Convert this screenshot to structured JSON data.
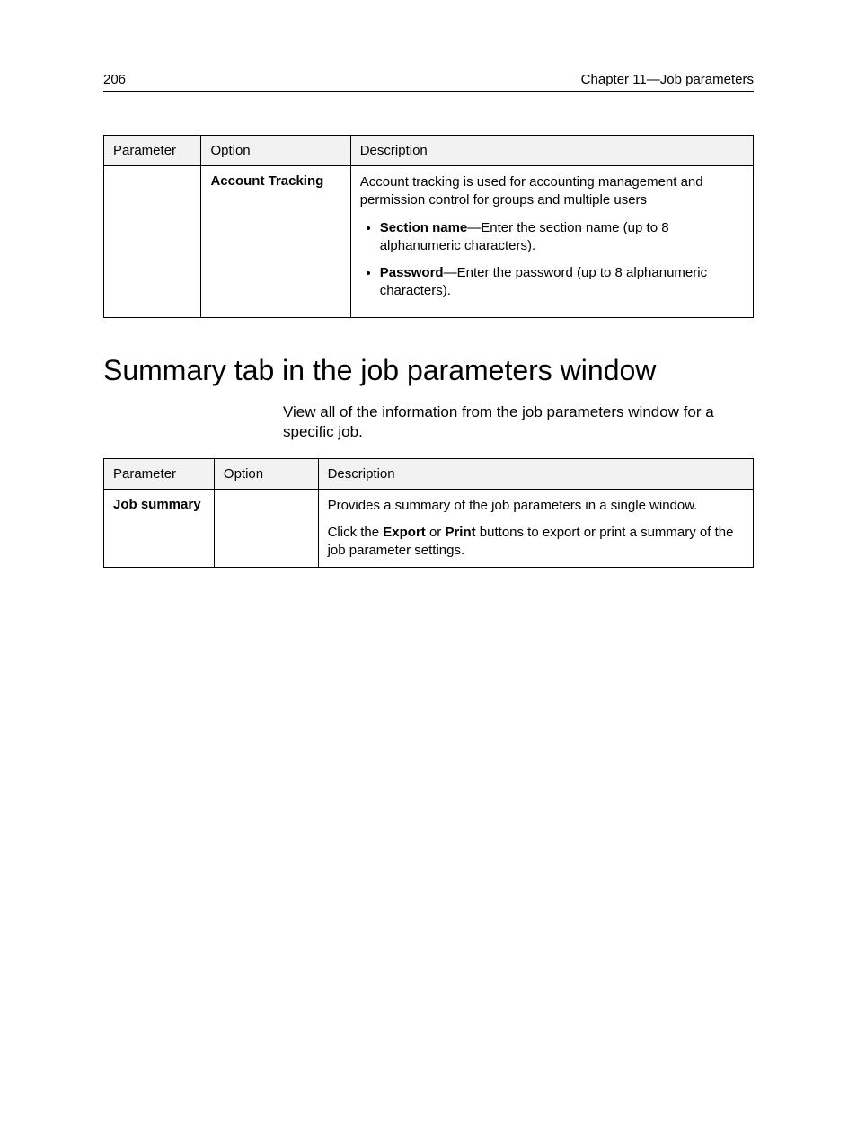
{
  "header": {
    "page_number": "206",
    "chapter_label": "Chapter 11—Job parameters"
  },
  "table1": {
    "columns": [
      "Parameter",
      "Option",
      "Description"
    ],
    "col_widths": [
      "15%",
      "23%",
      "62%"
    ],
    "row": {
      "parameter": "",
      "option": "Account Tracking",
      "desc_intro": "Account tracking is used for accounting management and permission control for groups and multiple users",
      "bullets": [
        {
          "label": "Section name",
          "text": "—Enter the section name (up to 8 alphanumeric characters)."
        },
        {
          "label": "Password",
          "text": "—Enter the password (up to 8 alphanumeric characters)."
        }
      ]
    }
  },
  "section_heading": "Summary tab in the job parameters window",
  "intro_text": "View all of the information from the job parameters window for a specific job.",
  "table2": {
    "columns": [
      "Parameter",
      "Option",
      "Description"
    ],
    "col_widths": [
      "17%",
      "16%",
      "67%"
    ],
    "row": {
      "parameter": "Job summary",
      "option": "",
      "desc_line1": "Provides a summary of the job parameters in a single window.",
      "desc_line2_pre": "Click the ",
      "desc_line2_b1": "Export",
      "desc_line2_mid": " or ",
      "desc_line2_b2": "Print",
      "desc_line2_post": " buttons to export or print a summary of the job parameter settings."
    }
  }
}
